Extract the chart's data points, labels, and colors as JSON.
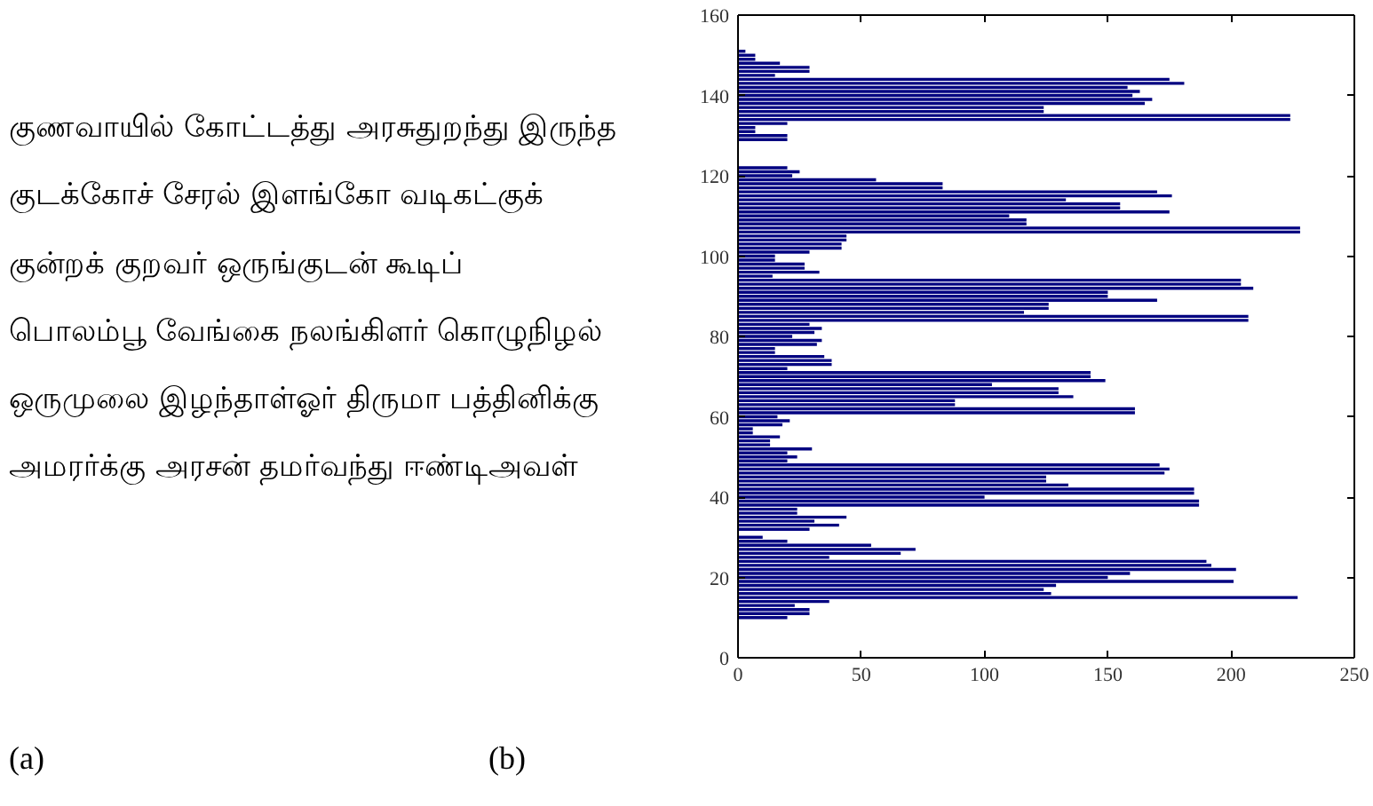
{
  "chart_data": {
    "type": "bar",
    "orientation": "horizontal",
    "color": "#000080",
    "x": [
      10,
      11,
      12,
      13,
      14,
      15,
      16,
      17,
      18,
      19,
      20,
      21,
      22,
      23,
      24,
      25,
      26,
      27,
      28,
      29,
      30,
      32,
      33,
      34,
      35,
      36,
      37,
      38,
      39,
      40,
      41,
      42,
      43,
      44,
      45,
      46,
      47,
      48,
      49,
      50,
      51,
      52,
      53,
      54,
      55,
      56,
      57,
      58,
      59,
      60,
      61,
      62,
      63,
      64,
      65,
      66,
      67,
      68,
      69,
      70,
      71,
      72,
      73,
      74,
      75,
      76,
      77,
      78,
      79,
      80,
      81,
      82,
      83,
      84,
      85,
      86,
      87,
      88,
      89,
      90,
      91,
      92,
      93,
      94,
      95,
      96,
      97,
      98,
      99,
      100,
      101,
      102,
      103,
      104,
      105,
      106,
      107,
      108,
      109,
      110,
      111,
      112,
      113,
      114,
      115,
      116,
      117,
      118,
      119,
      120,
      121,
      122,
      129,
      130,
      131,
      132,
      133,
      134,
      135,
      136,
      137,
      138,
      139,
      140,
      141,
      142,
      143,
      144,
      145,
      146,
      147,
      148,
      149,
      150,
      151
    ],
    "values": [
      20,
      29,
      29,
      23,
      37,
      227,
      127,
      124,
      129,
      201,
      150,
      159,
      202,
      192,
      190,
      37,
      66,
      72,
      54,
      20,
      10,
      29,
      41,
      31,
      44,
      24,
      24,
      187,
      187,
      100,
      185,
      185,
      134,
      125,
      125,
      173,
      175,
      171,
      20,
      24,
      20,
      30,
      13,
      13,
      17,
      6,
      6,
      18,
      21,
      16,
      161,
      161,
      88,
      88,
      136,
      130,
      130,
      103,
      149,
      143,
      143,
      20,
      38,
      38,
      35,
      15,
      15,
      32,
      34,
      22,
      31,
      34,
      29,
      207,
      207,
      116,
      126,
      126,
      170,
      150,
      150,
      209,
      204,
      204,
      14,
      33,
      27,
      27,
      15,
      15,
      29,
      42,
      42,
      44,
      44,
      228,
      228,
      117,
      117,
      110,
      175,
      155,
      155,
      133,
      176,
      170,
      83,
      83,
      56,
      22,
      25,
      20,
      20,
      20,
      7,
      7,
      20,
      224,
      224,
      124,
      124,
      165,
      168,
      160,
      163,
      158,
      181,
      175,
      15,
      29,
      29,
      17,
      7,
      7,
      3
    ],
    "xlim": [
      0,
      250
    ],
    "xticks": [
      0,
      50,
      100,
      150,
      200,
      250
    ],
    "ylim": [
      0,
      160
    ],
    "yticks": [
      0,
      20,
      40,
      60,
      80,
      100,
      120,
      140,
      160
    ],
    "annotations": [
      "குணவாயில் கோட்டத்து அரசுதுறந்து இருந்த",
      "குடக்கோச் சேரல் இளங்கோ வடிகட்குக்",
      "குன்றக் குறவர் ஒருங்குடன் கூடிப்",
      "பொலம்பூ வேங்கை நலங்கிளர் கொழுநிழல்",
      "ஒருமுலை இழந்தாள்ஓர் திருமா பத்தினிக்கு",
      "அமரர்க்கு அரசன் தமர்வந்து ஈண்டிஅவள்",
      "(a)",
      "(b)"
    ]
  }
}
